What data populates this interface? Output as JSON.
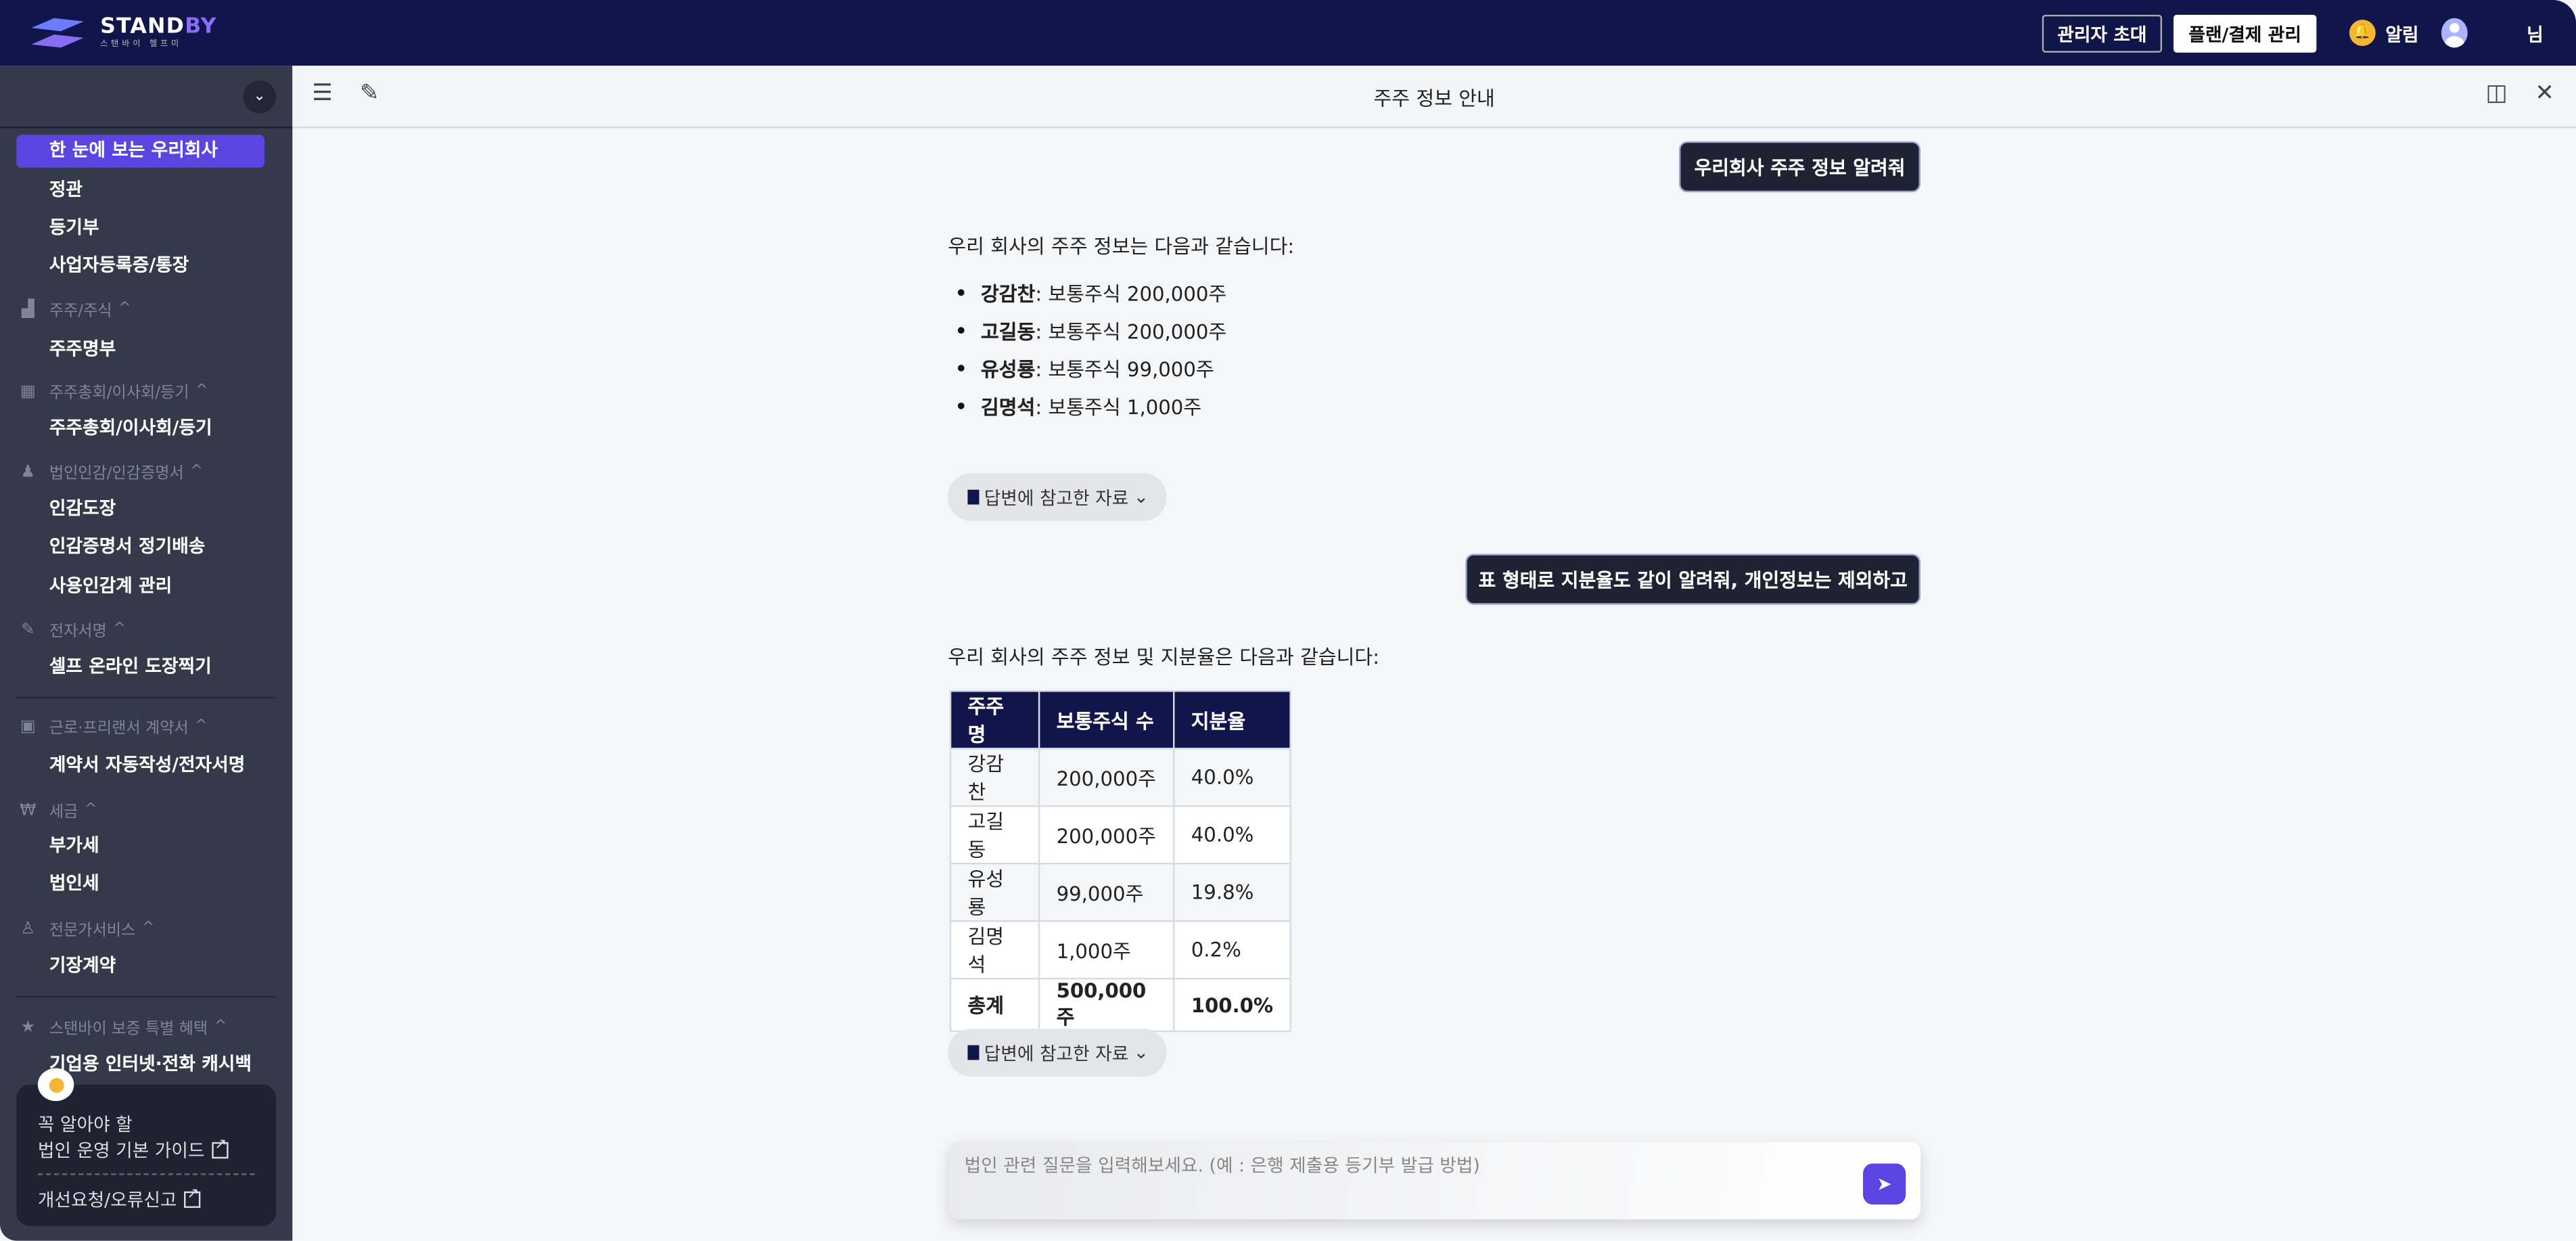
{
  "brand": {
    "name_a": "STAND",
    "name_b": "BY",
    "sub": "스탠바이 헬프미"
  },
  "topbar": {
    "invite": "관리자 초대",
    "plan": "플랜/결제 관리",
    "alarm": "알림",
    "user_suffix": "님"
  },
  "sidebar": {
    "active": "한 눈에 보는 우리회사",
    "items_top": [
      "정관",
      "등기부",
      "사업자등록증/통장"
    ],
    "sections": [
      {
        "icon": "bar-chart-icon",
        "title": "주주/주식",
        "items": [
          "주주명부"
        ]
      },
      {
        "icon": "grid-icon",
        "title": "주주총회/이사회/등기",
        "items": [
          "주주총회/이사회/등기"
        ]
      },
      {
        "icon": "stamp-icon",
        "title": "법인인감/인감증명서",
        "items": [
          "인감도장",
          "인감증명서 정기배송",
          "사용인감계 관리"
        ]
      },
      {
        "icon": "pen-icon",
        "title": "전자서명",
        "items": [
          "셀프 온라인 도장찍기"
        ]
      },
      {
        "icon": "contract-icon",
        "title": "근로·프리랜서 계약서",
        "items": [
          "계약서 자동작성/전자서명"
        ]
      },
      {
        "icon": "won-icon",
        "title": "세금",
        "items": [
          "부가세",
          "법인세"
        ]
      },
      {
        "icon": "expert-icon",
        "title": "전문가서비스",
        "items": [
          "기장계약"
        ]
      },
      {
        "icon": "star-icon",
        "title": "스탠바이 보증 특별 혜택",
        "items": [
          "기업용 인터넷·전화 캐시백"
        ]
      }
    ],
    "guide": {
      "line1": "꼭 알아야 할",
      "line2": "법인 운영 기본 가이드",
      "feedback": "개선요청/오류신고"
    }
  },
  "header": {
    "title": "주주 정보 안내"
  },
  "chat": {
    "q1": "우리회사 주주 정보 알려줘",
    "a1_intro": "우리 회사의 주주 정보는 다음과 같습니다:",
    "a1_list": [
      {
        "name": "강감찬",
        "text": ": 보통주식 200,000주"
      },
      {
        "name": "고길동",
        "text": ": 보통주식 200,000주"
      },
      {
        "name": "유성룡",
        "text": ": 보통주식 99,000주"
      },
      {
        "name": "김명석",
        "text": ": 보통주식 1,000주"
      }
    ],
    "ref_label": "답변에 참고한 자료",
    "q2": "표 형태로 지분율도 같이 알려줘, 개인정보는 제외하고",
    "a2_intro": "우리 회사의 주주 정보 및 지분율은 다음과 같습니다:",
    "table": {
      "headers": [
        "주주명",
        "보통주식 수",
        "지분율"
      ],
      "rows": [
        [
          "강감찬",
          "200,000주",
          "40.0%"
        ],
        [
          "고길동",
          "200,000주",
          "40.0%"
        ],
        [
          "유성룡",
          "99,000주",
          "19.8%"
        ],
        [
          "김명석",
          "1,000주",
          "0.2%"
        ]
      ],
      "total": [
        "총계",
        "500,000주",
        "100.0%"
      ]
    },
    "input_placeholder": "법인 관련 질문을 입력해보세요. (예 : 은행 제출용 등기부 발급 방법)"
  },
  "colors": {
    "topbar": "#10154a",
    "sidebar": "#353a4b",
    "accent": "#5b45e0",
    "bell": "#f5b731"
  }
}
